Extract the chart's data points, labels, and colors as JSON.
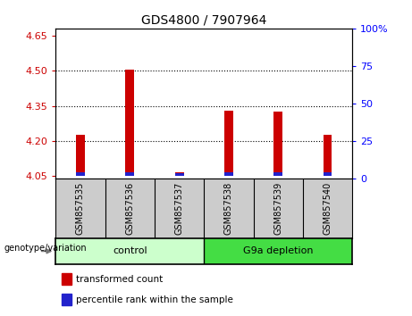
{
  "title": "GDS4800 / 7907964",
  "samples": [
    "GSM857535",
    "GSM857536",
    "GSM857537",
    "GSM857538",
    "GSM857539",
    "GSM857540"
  ],
  "red_values": [
    4.225,
    4.505,
    4.065,
    4.33,
    4.325,
    4.225
  ],
  "blue_heights": [
    0.016,
    0.018,
    0.014,
    0.016,
    0.016,
    0.016
  ],
  "ylim_left": [
    4.04,
    4.68
  ],
  "ylim_right": [
    0,
    100
  ],
  "yticks_left": [
    4.05,
    4.2,
    4.35,
    4.5,
    4.65
  ],
  "yticks_right": [
    0,
    25,
    50,
    75,
    100
  ],
  "right_tick_labels": [
    "0",
    "25",
    "50",
    "75",
    "100%"
  ],
  "grid_lines": [
    4.2,
    4.35,
    4.5
  ],
  "bar_bottom": 4.05,
  "control_label": "control",
  "depletion_label": "G9a depletion",
  "genotype_label": "genotype/variation",
  "legend_red": "transformed count",
  "legend_blue": "percentile rank within the sample",
  "red_color": "#cc0000",
  "blue_color": "#2222cc",
  "control_bg": "#ccffcc",
  "depletion_bg": "#44dd44",
  "sample_bg": "#cccccc",
  "bar_width": 0.18
}
